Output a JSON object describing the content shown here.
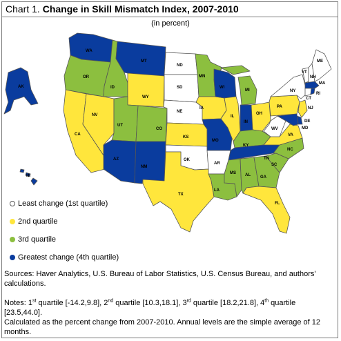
{
  "title_prefix": "Chart 1. ",
  "title_main": "Change in Skill Mismatch Index, 2007-2010",
  "subtitle": "(in percent)",
  "colors": {
    "q1": "#ffffff",
    "q2": "#ffe63c",
    "q3": "#8cbf3f",
    "q4": "#0a3c9e",
    "outline": "#555555"
  },
  "legend": [
    {
      "key": "q1",
      "label": "Least change  (1st quartile)"
    },
    {
      "key": "q2",
      "label": "2nd quartile"
    },
    {
      "key": "q3",
      "label": "3rd quartile"
    },
    {
      "key": "q4",
      "label": "Greatest change (4th quartile)"
    }
  ],
  "sources": "Sources: Haver Analytics, U.S. Bureau of Labor Statistics, U.S. Census Bureau, and authors' calculations.",
  "notes": {
    "prefix": "Notes: 1",
    "q1_sup": "st",
    "q1_range": " quartile [-14.2,9.8], 2",
    "q2_sup": "nd",
    "q2_range": " quartile [10.3,18.1], 3",
    "q3_sup": "rd",
    "q3_range": " quartile [18.2,21.8], 4",
    "q4_sup": "th",
    "q4_range": " quartile [23.5,44.0].",
    "calc": "Calculated as the percent change from 2007-2010.  Annual levels are the simple average of 12 months."
  },
  "states": [
    {
      "code": "WA",
      "q": "q4"
    },
    {
      "code": "OR",
      "q": "q3"
    },
    {
      "code": "CA",
      "q": "q2"
    },
    {
      "code": "ID",
      "q": "q3"
    },
    {
      "code": "NV",
      "q": "q2"
    },
    {
      "code": "MT",
      "q": "q4"
    },
    {
      "code": "WY",
      "q": "q2"
    },
    {
      "code": "UT",
      "q": "q3"
    },
    {
      "code": "CO",
      "q": "q3"
    },
    {
      "code": "AZ",
      "q": "q4"
    },
    {
      "code": "NM",
      "q": "q4"
    },
    {
      "code": "ND",
      "q": "q1"
    },
    {
      "code": "SD",
      "q": "q1"
    },
    {
      "code": "NE",
      "q": "q1"
    },
    {
      "code": "KS",
      "q": "q2"
    },
    {
      "code": "OK",
      "q": "q1"
    },
    {
      "code": "TX",
      "q": "q2"
    },
    {
      "code": "MN",
      "q": "q3"
    },
    {
      "code": "IA",
      "q": "q2"
    },
    {
      "code": "MO",
      "q": "q4"
    },
    {
      "code": "AR",
      "q": "q1"
    },
    {
      "code": "LA",
      "q": "q3"
    },
    {
      "code": "WI",
      "q": "q4"
    },
    {
      "code": "IL",
      "q": "q2"
    },
    {
      "code": "MI",
      "q": "q3"
    },
    {
      "code": "IN",
      "q": "q4"
    },
    {
      "code": "OH",
      "q": "q2"
    },
    {
      "code": "KY",
      "q": "q3"
    },
    {
      "code": "TN",
      "q": "q4"
    },
    {
      "code": "MS",
      "q": "q3"
    },
    {
      "code": "AL",
      "q": "q3"
    },
    {
      "code": "GA",
      "q": "q3"
    },
    {
      "code": "FL",
      "q": "q2"
    },
    {
      "code": "SC",
      "q": "q3"
    },
    {
      "code": "NC",
      "q": "q3"
    },
    {
      "code": "VA",
      "q": "q2"
    },
    {
      "code": "WV",
      "q": "q1"
    },
    {
      "code": "PA",
      "q": "q2"
    },
    {
      "code": "NY",
      "q": "q1"
    },
    {
      "code": "VT",
      "q": "q1"
    },
    {
      "code": "NH",
      "q": "q1"
    },
    {
      "code": "ME",
      "q": "q1"
    },
    {
      "code": "MA",
      "q": "q4"
    },
    {
      "code": "CT",
      "q": "q1"
    },
    {
      "code": "RI",
      "q": "q4"
    },
    {
      "code": "NJ",
      "q": "q2"
    },
    {
      "code": "DE",
      "q": "q4"
    },
    {
      "code": "MD",
      "q": "q4"
    },
    {
      "code": "AK",
      "q": "q4"
    },
    {
      "code": "HI",
      "q": "q4"
    }
  ]
}
